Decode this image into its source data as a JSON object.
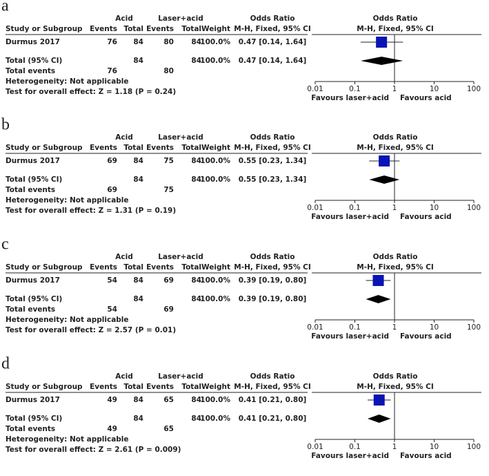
{
  "chart_data": [
    {
      "type": "forest",
      "panel": "a",
      "headers": {
        "group1": "Acid",
        "group2": "Laser+acid",
        "effect": "Odds Ratio",
        "columns": [
          "Study or Subgroup",
          "Events",
          "Total",
          "Events",
          "Total",
          "Weight",
          "M-H, Fixed, 95% CI"
        ],
        "plot_title": "Odds Ratio",
        "plot_subtitle": "M-H, Fixed, 95% CI"
      },
      "study": {
        "name": "Durmus 2017",
        "cells": [
          76,
          84,
          80,
          84
        ],
        "weight": "100.0%",
        "or": 0.47,
        "ci": [
          0.14,
          1.64
        ],
        "value_label": "0.47 [0.14, 1.64]"
      },
      "total": {
        "name": "Total (95% CI)",
        "cells": [
          84,
          84
        ],
        "weight": "100.0%",
        "or": 0.47,
        "ci": [
          0.14,
          1.64
        ],
        "value_label": "0.47 [0.14, 1.64]"
      },
      "total_events": {
        "name": "Total events",
        "values": [
          76,
          80
        ]
      },
      "heterogeneity": "Heterogeneity: Not applicable",
      "overall_effect": "Test for overall effect: Z = 1.18 (P = 0.24)",
      "xlim": [
        0.01,
        100
      ],
      "xticks": [
        0.01,
        0.1,
        1,
        10,
        100
      ],
      "log_x": true,
      "favours": [
        "Favours laser+acid",
        "Favours acid"
      ],
      "color": "#0a14b4",
      "diamond_color": "#000000"
    },
    {
      "type": "forest",
      "panel": "b",
      "headers": {
        "group1": "Acid",
        "group2": "Laser+acid",
        "effect": "Odds Ratio",
        "columns": [
          "Study or Subgroup",
          "Events",
          "Total",
          "Events",
          "Total",
          "Weight",
          "M-H, Fixed, 95% CI"
        ],
        "plot_title": "Odds Ratio",
        "plot_subtitle": "M-H, Fixed, 95% CI"
      },
      "study": {
        "name": "Durmus 2017",
        "cells": [
          69,
          84,
          75,
          84
        ],
        "weight": "100.0%",
        "or": 0.55,
        "ci": [
          0.23,
          1.34
        ],
        "value_label": "0.55 [0.23, 1.34]"
      },
      "total": {
        "name": "Total (95% CI)",
        "cells": [
          84,
          84
        ],
        "weight": "100.0%",
        "or": 0.55,
        "ci": [
          0.23,
          1.34
        ],
        "value_label": "0.55 [0.23, 1.34]"
      },
      "total_events": {
        "name": "Total events",
        "values": [
          69,
          75
        ]
      },
      "heterogeneity": "Heterogeneity: Not applicable",
      "overall_effect": "Test for overall effect: Z = 1.31 (P = 0.19)",
      "xlim": [
        0.01,
        100
      ],
      "xticks": [
        0.01,
        0.1,
        1,
        10,
        100
      ],
      "log_x": true,
      "favours": [
        "Favours laser+acid",
        "Favours acid"
      ],
      "color": "#0a14b4",
      "diamond_color": "#000000"
    },
    {
      "type": "forest",
      "panel": "c",
      "headers": {
        "group1": "Acid",
        "group2": "Laser+acid",
        "effect": "Odds Ratio",
        "columns": [
          "Study or Subgroup",
          "Events",
          "Total",
          "Events",
          "Total",
          "Weight",
          "M-H, Fixed, 95% CI"
        ],
        "plot_title": "Odds Ratio",
        "plot_subtitle": "M-H, Fixed, 95% CI"
      },
      "study": {
        "name": "Durmus 2017",
        "cells": [
          54,
          84,
          69,
          84
        ],
        "weight": "100.0%",
        "or": 0.39,
        "ci": [
          0.19,
          0.8
        ],
        "value_label": "0.39 [0.19, 0.80]"
      },
      "total": {
        "name": "Total (95% CI)",
        "cells": [
          84,
          84
        ],
        "weight": "100.0%",
        "or": 0.39,
        "ci": [
          0.19,
          0.8
        ],
        "value_label": "0.39 [0.19, 0.80]"
      },
      "total_events": {
        "name": "Total events",
        "values": [
          54,
          69
        ]
      },
      "heterogeneity": "Heterogeneity: Not applicable",
      "overall_effect": "Test for overall effect: Z = 2.57 (P = 0.01)",
      "xlim": [
        0.01,
        100
      ],
      "xticks": [
        0.01,
        0.1,
        1,
        10,
        100
      ],
      "log_x": true,
      "favours": [
        "Favours laser+acid",
        "Favours acid"
      ],
      "color": "#0a14b4",
      "diamond_color": "#000000"
    },
    {
      "type": "forest",
      "panel": "d",
      "headers": {
        "group1": "Acid",
        "group2": "Laser+acid",
        "effect": "Odds Ratio",
        "columns": [
          "Study or Subgroup",
          "Events",
          "Total",
          "Events",
          "Total",
          "Weight",
          "M-H, Fixed, 95% CI"
        ],
        "plot_title": "Odds Ratio",
        "plot_subtitle": "M-H, Fixed, 95% CI"
      },
      "study": {
        "name": "Durmus 2017",
        "cells": [
          49,
          84,
          65,
          84
        ],
        "weight": "100.0%",
        "or": 0.41,
        "ci": [
          0.21,
          0.8
        ],
        "value_label": "0.41 [0.21, 0.80]"
      },
      "total": {
        "name": "Total (95% CI)",
        "cells": [
          84,
          84
        ],
        "weight": "100.0%",
        "or": 0.41,
        "ci": [
          0.21,
          0.8
        ],
        "value_label": "0.41 [0.21, 0.80]"
      },
      "total_events": {
        "name": "Total events",
        "values": [
          49,
          65
        ]
      },
      "heterogeneity": "Heterogeneity: Not applicable",
      "overall_effect": "Test for overall effect: Z = 2.61 (P = 0.009)",
      "xlim": [
        0.01,
        100
      ],
      "xticks": [
        0.01,
        0.1,
        1,
        10,
        100
      ],
      "log_x": true,
      "favours": [
        "Favours laser+acid",
        "Favours acid"
      ],
      "color": "#0a14b4",
      "diamond_color": "#000000"
    }
  ]
}
